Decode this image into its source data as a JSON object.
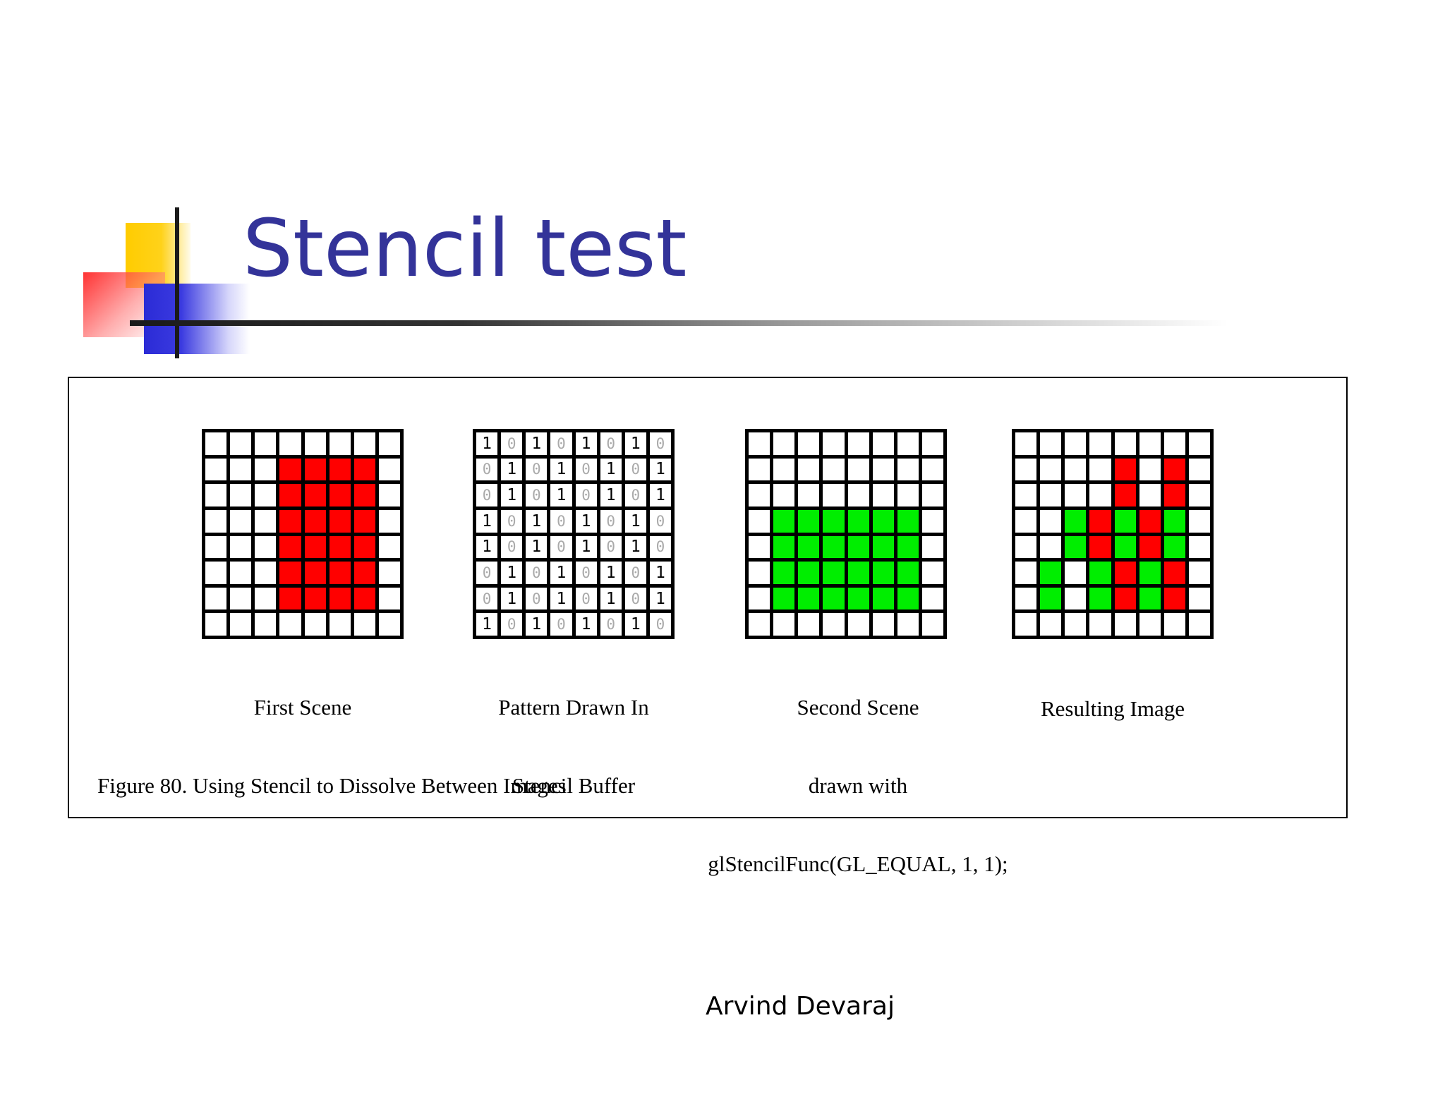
{
  "title": "Stencil test",
  "colors": {
    "title": "#333399",
    "red": "#ff0000",
    "green": "#00ee00",
    "zero_text": "#aaaaaa"
  },
  "figure": {
    "caption": "Figure 80. Using Stencil to Dissolve Between Images",
    "panels": [
      {
        "id": "first-scene",
        "caption_lines": [
          "First Scene"
        ],
        "rows": [
          "........",
          "...RRRR.",
          "...RRRR.",
          "...RRRR.",
          "...RRRR.",
          "...RRRR.",
          "...RRRR.",
          "........"
        ]
      },
      {
        "id": "stencil-pattern",
        "caption_lines": [
          "Pattern Drawn In",
          "Stencil Buffer"
        ],
        "rows": [
          "10101010",
          "01010101",
          "01010101",
          "10101010",
          "10101010",
          "01010101",
          "01010101",
          "10101010"
        ]
      },
      {
        "id": "second-scene",
        "caption_lines": [
          "Second Scene",
          "drawn with",
          "glStencilFunc(GL_EQUAL, 1, 1);"
        ],
        "rows": [
          "........",
          "........",
          "........",
          ".GGGGGG.",
          ".GGGGGG.",
          ".GGGGGG.",
          ".GGGGGG.",
          "........"
        ]
      },
      {
        "id": "resulting-image",
        "caption_lines": [
          "Resulting Image"
        ],
        "rows": [
          "........",
          "....R.R.",
          "....R.R.",
          "..GRGRG.",
          "..GRGRG.",
          ".G.GRGR.",
          ".G.GRGR.",
          "........"
        ]
      }
    ]
  },
  "footer": {
    "author": "Arvind Devaraj"
  }
}
